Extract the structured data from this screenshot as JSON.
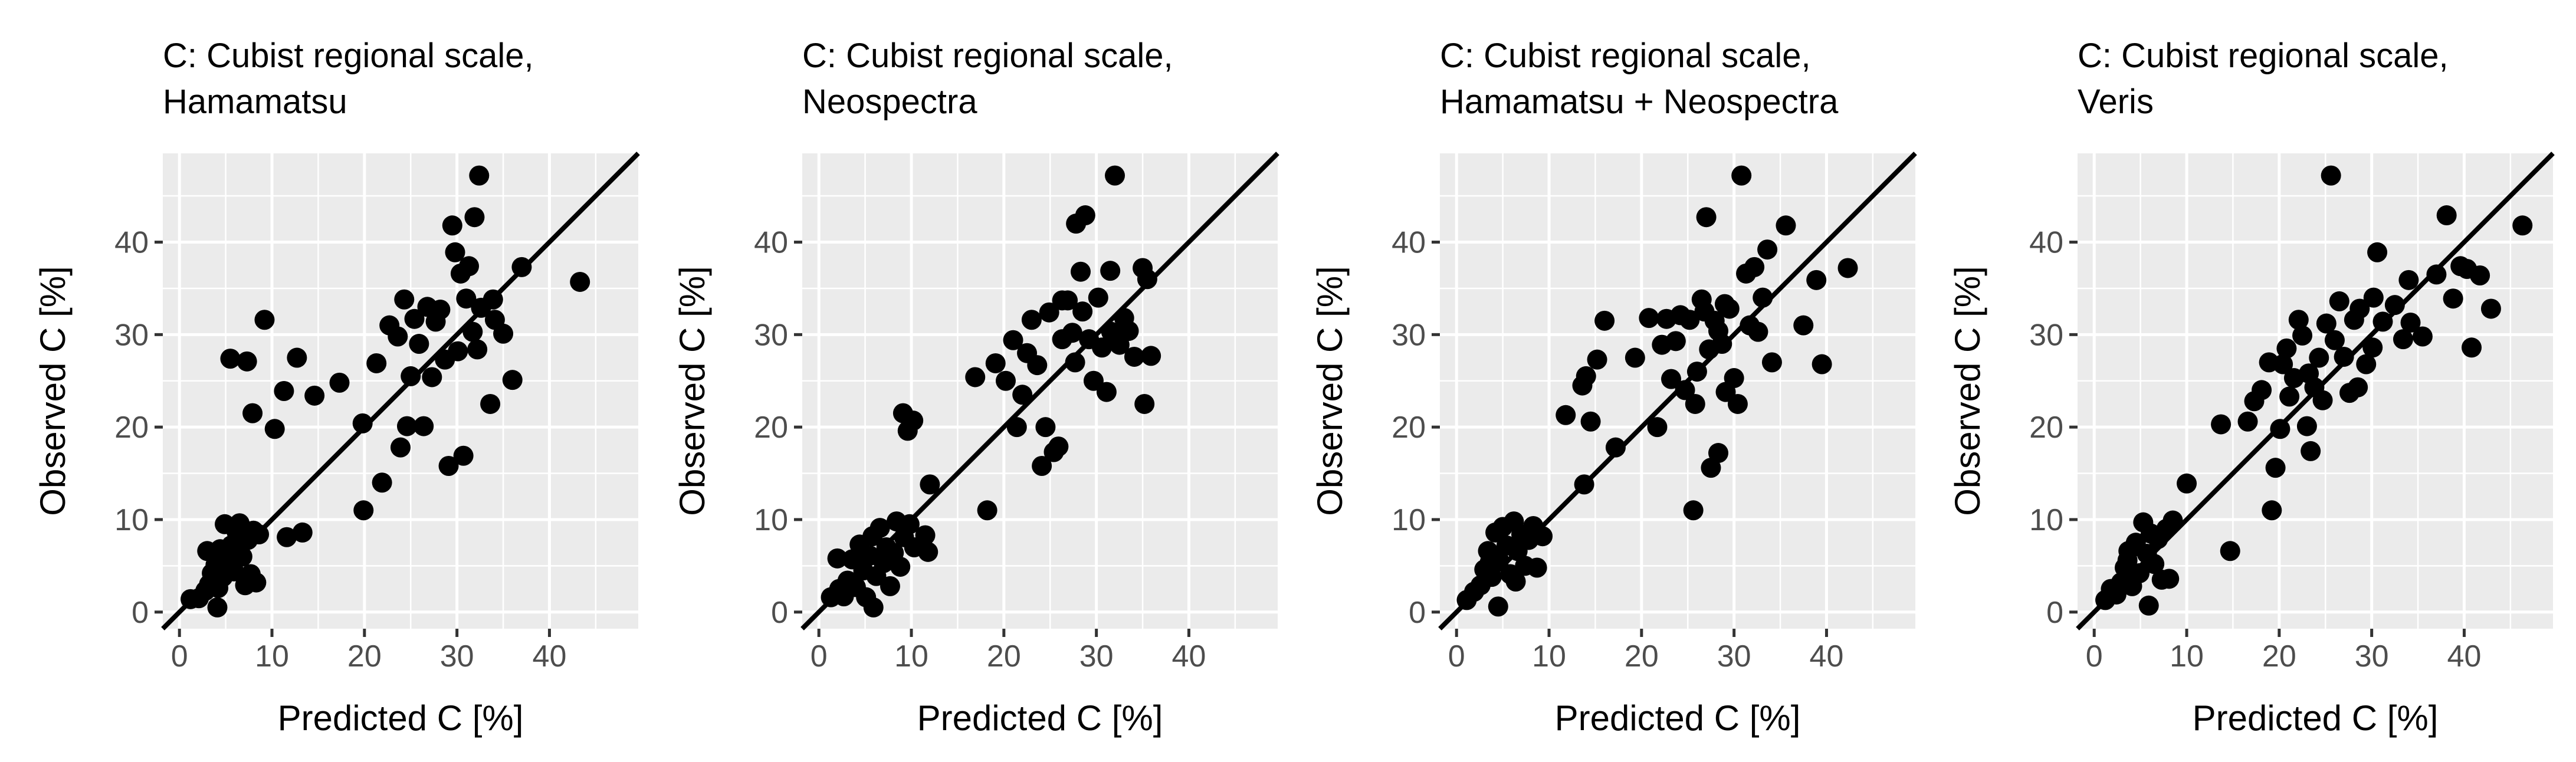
{
  "chart_data": [
    {
      "type": "scatter",
      "title_lines": [
        "C: Cubist regional scale,",
        "Hamamatsu"
      ],
      "xlabel": "Predicted C [%]",
      "ylabel": "Observed C [%]",
      "xlim": [
        -1.8,
        49.6
      ],
      "ylim": [
        -1.8,
        49.6
      ],
      "xticks": [
        0,
        10,
        20,
        30,
        40
      ],
      "yticks": [
        0,
        10,
        20,
        30,
        40
      ],
      "reference_line": "1:1",
      "points": [
        [
          1.2,
          1.4
        ],
        [
          2.1,
          1.5
        ],
        [
          2.8,
          2.3
        ],
        [
          3.2,
          3.0
        ],
        [
          3.5,
          4.2
        ],
        [
          3.9,
          5.1
        ],
        [
          4.2,
          2.6
        ],
        [
          4.4,
          6.8
        ],
        [
          4.7,
          3.8
        ],
        [
          4.9,
          9.5
        ],
        [
          5.3,
          5.0
        ],
        [
          5.6,
          7.2
        ],
        [
          5.9,
          4.4
        ],
        [
          6.2,
          8.6
        ],
        [
          6.5,
          9.6
        ],
        [
          6.8,
          6.0
        ],
        [
          7.1,
          2.9
        ],
        [
          7.4,
          7.8
        ],
        [
          7.7,
          4.1
        ],
        [
          8.0,
          8.8
        ],
        [
          8.3,
          3.2
        ],
        [
          8.6,
          8.4
        ],
        [
          4.1,
          0.5
        ],
        [
          5.0,
          6.3
        ],
        [
          3.0,
          6.6
        ],
        [
          7.9,
          21.5
        ],
        [
          5.5,
          27.4
        ],
        [
          7.3,
          27.1
        ],
        [
          9.2,
          31.6
        ],
        [
          10.3,
          19.8
        ],
        [
          11.3,
          23.9
        ],
        [
          12.7,
          27.5
        ],
        [
          13.3,
          8.6
        ],
        [
          11.6,
          8.1
        ],
        [
          14.6,
          23.4
        ],
        [
          17.3,
          24.8
        ],
        [
          19.9,
          11.0
        ],
        [
          19.8,
          20.4
        ],
        [
          21.3,
          26.9
        ],
        [
          21.9,
          14.0
        ],
        [
          22.7,
          31.0
        ],
        [
          23.6,
          29.8
        ],
        [
          23.9,
          17.8
        ],
        [
          24.3,
          33.8
        ],
        [
          24.6,
          20.1
        ],
        [
          25.0,
          25.5
        ],
        [
          25.4,
          31.7
        ],
        [
          25.9,
          29.0
        ],
        [
          26.4,
          20.1
        ],
        [
          26.8,
          33.0
        ],
        [
          27.3,
          25.4
        ],
        [
          27.7,
          31.4
        ],
        [
          28.2,
          32.7
        ],
        [
          28.7,
          27.3
        ],
        [
          29.1,
          15.8
        ],
        [
          29.5,
          41.8
        ],
        [
          29.8,
          38.9
        ],
        [
          30.1,
          28.2
        ],
        [
          30.4,
          36.6
        ],
        [
          30.7,
          16.9
        ],
        [
          31.0,
          33.9
        ],
        [
          31.3,
          37.4
        ],
        [
          31.7,
          30.3
        ],
        [
          31.9,
          42.7
        ],
        [
          32.2,
          28.4
        ],
        [
          32.6,
          32.9
        ],
        [
          32.4,
          47.2
        ],
        [
          33.6,
          22.5
        ],
        [
          33.9,
          33.8
        ],
        [
          34.1,
          31.6
        ],
        [
          35.0,
          30.1
        ],
        [
          36.0,
          25.1
        ],
        [
          37.0,
          37.3
        ],
        [
          43.3,
          35.7
        ]
      ]
    },
    {
      "type": "scatter",
      "title_lines": [
        "C: Cubist regional scale,",
        "Neospectra"
      ],
      "xlabel": "Predicted C [%]",
      "ylabel": "Observed C [%]",
      "xlim": [
        -1.8,
        49.6
      ],
      "ylim": [
        -1.8,
        49.6
      ],
      "xticks": [
        0,
        10,
        20,
        30,
        40
      ],
      "yticks": [
        0,
        10,
        20,
        30,
        40
      ],
      "reference_line": "1:1",
      "points": [
        [
          1.3,
          1.6
        ],
        [
          2.2,
          2.5
        ],
        [
          2.7,
          1.7
        ],
        [
          3.1,
          3.4
        ],
        [
          3.6,
          5.7
        ],
        [
          4.0,
          2.7
        ],
        [
          4.4,
          7.3
        ],
        [
          4.8,
          4.5
        ],
        [
          5.1,
          1.6
        ],
        [
          5.5,
          6.1
        ],
        [
          5.8,
          8.2
        ],
        [
          6.2,
          3.9
        ],
        [
          6.6,
          9.1
        ],
        [
          7.0,
          5.3
        ],
        [
          7.3,
          7.0
        ],
        [
          7.7,
          2.8
        ],
        [
          8.1,
          6.4
        ],
        [
          8.4,
          9.8
        ],
        [
          8.8,
          4.9
        ],
        [
          9.2,
          8.1
        ],
        [
          9.8,
          9.5
        ],
        [
          10.3,
          7.0
        ],
        [
          11.5,
          8.3
        ],
        [
          12.0,
          13.8
        ],
        [
          11.8,
          6.5
        ],
        [
          9.1,
          21.5
        ],
        [
          9.6,
          19.6
        ],
        [
          10.2,
          20.7
        ],
        [
          5.9,
          0.5
        ],
        [
          2.0,
          5.8
        ],
        [
          16.9,
          25.4
        ],
        [
          18.2,
          11.0
        ],
        [
          19.1,
          26.9
        ],
        [
          20.2,
          25.0
        ],
        [
          21.0,
          29.4
        ],
        [
          21.4,
          20.0
        ],
        [
          22.0,
          23.5
        ],
        [
          22.5,
          28.0
        ],
        [
          23.0,
          31.6
        ],
        [
          23.6,
          26.7
        ],
        [
          24.1,
          15.8
        ],
        [
          24.5,
          20.0
        ],
        [
          24.9,
          32.4
        ],
        [
          25.4,
          17.3
        ],
        [
          25.9,
          17.9
        ],
        [
          26.3,
          29.5
        ],
        [
          26.9,
          33.7
        ],
        [
          27.4,
          30.2
        ],
        [
          27.8,
          42.0
        ],
        [
          28.3,
          36.8
        ],
        [
          28.8,
          42.9
        ],
        [
          29.2,
          29.5
        ],
        [
          29.7,
          25.0
        ],
        [
          30.2,
          34.0
        ],
        [
          30.6,
          28.6
        ],
        [
          31.1,
          23.8
        ],
        [
          31.6,
          30.3
        ],
        [
          32.0,
          47.2
        ],
        [
          32.5,
          28.9
        ],
        [
          33.0,
          31.8
        ],
        [
          33.5,
          30.4
        ],
        [
          34.1,
          27.6
        ],
        [
          35.2,
          22.5
        ],
        [
          35.0,
          37.2
        ],
        [
          35.5,
          36.0
        ],
        [
          35.9,
          27.7
        ],
        [
          28.5,
          32.5
        ],
        [
          26.3,
          33.7
        ],
        [
          31.5,
          36.9
        ],
        [
          27.7,
          27.0
        ]
      ]
    },
    {
      "type": "scatter",
      "title_lines": [
        "C: Cubist regional scale,",
        "Hamamatsu + Neospectra"
      ],
      "xlabel": "Predicted C [%]",
      "ylabel": "Observed C [%]",
      "xlim": [
        -1.8,
        49.6
      ],
      "ylim": [
        -1.8,
        49.6
      ],
      "xticks": [
        0,
        10,
        20,
        30,
        40
      ],
      "yticks": [
        0,
        10,
        20,
        30,
        40
      ],
      "reference_line": "1:1",
      "points": [
        [
          1.1,
          1.3
        ],
        [
          1.9,
          2.2
        ],
        [
          2.6,
          2.9
        ],
        [
          3.0,
          4.6
        ],
        [
          3.4,
          6.6
        ],
        [
          3.8,
          3.8
        ],
        [
          4.2,
          8.6
        ],
        [
          4.6,
          5.6
        ],
        [
          5.0,
          9.2
        ],
        [
          5.4,
          7.2
        ],
        [
          5.8,
          4.1
        ],
        [
          6.2,
          9.8
        ],
        [
          6.6,
          6.6
        ],
        [
          7.0,
          8.4
        ],
        [
          7.4,
          5.0
        ],
        [
          7.8,
          7.8
        ],
        [
          8.3,
          9.3
        ],
        [
          8.7,
          4.8
        ],
        [
          9.3,
          8.2
        ],
        [
          4.5,
          0.6
        ],
        [
          3.6,
          5.4
        ],
        [
          6.4,
          3.3
        ],
        [
          11.8,
          21.3
        ],
        [
          13.8,
          13.8
        ],
        [
          13.6,
          24.5
        ],
        [
          14.0,
          25.5
        ],
        [
          14.5,
          20.6
        ],
        [
          15.2,
          27.3
        ],
        [
          16.0,
          31.5
        ],
        [
          17.2,
          17.8
        ],
        [
          19.3,
          27.5
        ],
        [
          20.8,
          31.8
        ],
        [
          21.7,
          20.0
        ],
        [
          22.2,
          28.9
        ],
        [
          22.7,
          31.7
        ],
        [
          23.2,
          25.2
        ],
        [
          23.7,
          29.3
        ],
        [
          24.2,
          32.1
        ],
        [
          24.7,
          24.0
        ],
        [
          25.2,
          31.6
        ],
        [
          25.6,
          11.0
        ],
        [
          26.0,
          26.0
        ],
        [
          26.5,
          33.8
        ],
        [
          27.0,
          42.7
        ],
        [
          27.5,
          15.6
        ],
        [
          27.9,
          31.5
        ],
        [
          28.3,
          17.2
        ],
        [
          28.7,
          29.0
        ],
        [
          29.1,
          23.8
        ],
        [
          29.5,
          32.8
        ],
        [
          30.0,
          25.3
        ],
        [
          30.4,
          22.5
        ],
        [
          30.8,
          47.2
        ],
        [
          31.3,
          36.6
        ],
        [
          31.7,
          31.0
        ],
        [
          32.2,
          37.3
        ],
        [
          32.6,
          30.3
        ],
        [
          33.1,
          34.0
        ],
        [
          33.6,
          39.2
        ],
        [
          34.1,
          27.0
        ],
        [
          35.6,
          41.8
        ],
        [
          37.5,
          31.0
        ],
        [
          38.9,
          35.9
        ],
        [
          39.5,
          26.8
        ],
        [
          42.3,
          37.2
        ],
        [
          27.3,
          28.4
        ],
        [
          26.8,
          32.5
        ],
        [
          29.0,
          33.3
        ],
        [
          25.8,
          22.5
        ],
        [
          28.3,
          30.4
        ]
      ]
    },
    {
      "type": "scatter",
      "title_lines": [
        "C: Cubist regional scale,",
        "Veris"
      ],
      "xlabel": "Predicted C [%]",
      "ylabel": "Observed C [%]",
      "xlim": [
        -1.8,
        49.6
      ],
      "ylim": [
        -1.8,
        49.6
      ],
      "xticks": [
        0,
        10,
        20,
        30,
        40
      ],
      "yticks": [
        0,
        10,
        20,
        30,
        40
      ],
      "reference_line": "1:1",
      "points": [
        [
          1.2,
          1.3
        ],
        [
          1.8,
          2.5
        ],
        [
          2.4,
          1.9
        ],
        [
          2.9,
          3.2
        ],
        [
          3.3,
          4.8
        ],
        [
          3.7,
          6.6
        ],
        [
          4.1,
          2.8
        ],
        [
          4.5,
          7.5
        ],
        [
          4.9,
          4.2
        ],
        [
          5.3,
          9.7
        ],
        [
          5.7,
          6.3
        ],
        [
          6.1,
          8.5
        ],
        [
          6.5,
          5.2
        ],
        [
          6.9,
          7.9
        ],
        [
          7.3,
          3.5
        ],
        [
          7.8,
          9.0
        ],
        [
          8.1,
          3.6
        ],
        [
          8.5,
          9.9
        ],
        [
          5.9,
          0.7
        ],
        [
          3.6,
          5.6
        ],
        [
          10.0,
          13.9
        ],
        [
          13.7,
          20.3
        ],
        [
          14.7,
          6.6
        ],
        [
          16.6,
          20.6
        ],
        [
          17.3,
          22.8
        ],
        [
          18.1,
          24.0
        ],
        [
          18.9,
          27.0
        ],
        [
          19.2,
          11.0
        ],
        [
          19.6,
          15.6
        ],
        [
          20.1,
          19.8
        ],
        [
          20.4,
          26.8
        ],
        [
          20.8,
          28.5
        ],
        [
          21.1,
          23.3
        ],
        [
          21.6,
          25.3
        ],
        [
          22.1,
          31.6
        ],
        [
          22.5,
          29.9
        ],
        [
          23.0,
          20.1
        ],
        [
          23.4,
          17.4
        ],
        [
          23.8,
          24.3
        ],
        [
          24.3,
          27.5
        ],
        [
          24.7,
          22.9
        ],
        [
          25.1,
          31.2
        ],
        [
          25.6,
          47.2
        ],
        [
          26.0,
          29.4
        ],
        [
          26.5,
          33.6
        ],
        [
          27.0,
          27.6
        ],
        [
          27.6,
          23.7
        ],
        [
          28.1,
          31.6
        ],
        [
          28.7,
          32.8
        ],
        [
          29.4,
          26.8
        ],
        [
          30.1,
          28.6
        ],
        [
          30.6,
          38.9
        ],
        [
          31.2,
          31.4
        ],
        [
          32.5,
          33.2
        ],
        [
          33.4,
          29.5
        ],
        [
          34.2,
          31.3
        ],
        [
          35.5,
          29.8
        ],
        [
          37.0,
          36.5
        ],
        [
          38.1,
          42.9
        ],
        [
          38.8,
          33.9
        ],
        [
          39.6,
          37.4
        ],
        [
          40.3,
          37.1
        ],
        [
          40.8,
          28.6
        ],
        [
          41.7,
          36.4
        ],
        [
          42.9,
          32.8
        ],
        [
          46.3,
          41.8
        ],
        [
          28.5,
          24.3
        ],
        [
          34.0,
          35.9
        ],
        [
          30.2,
          34.0
        ],
        [
          23.2,
          25.8
        ]
      ]
    }
  ]
}
